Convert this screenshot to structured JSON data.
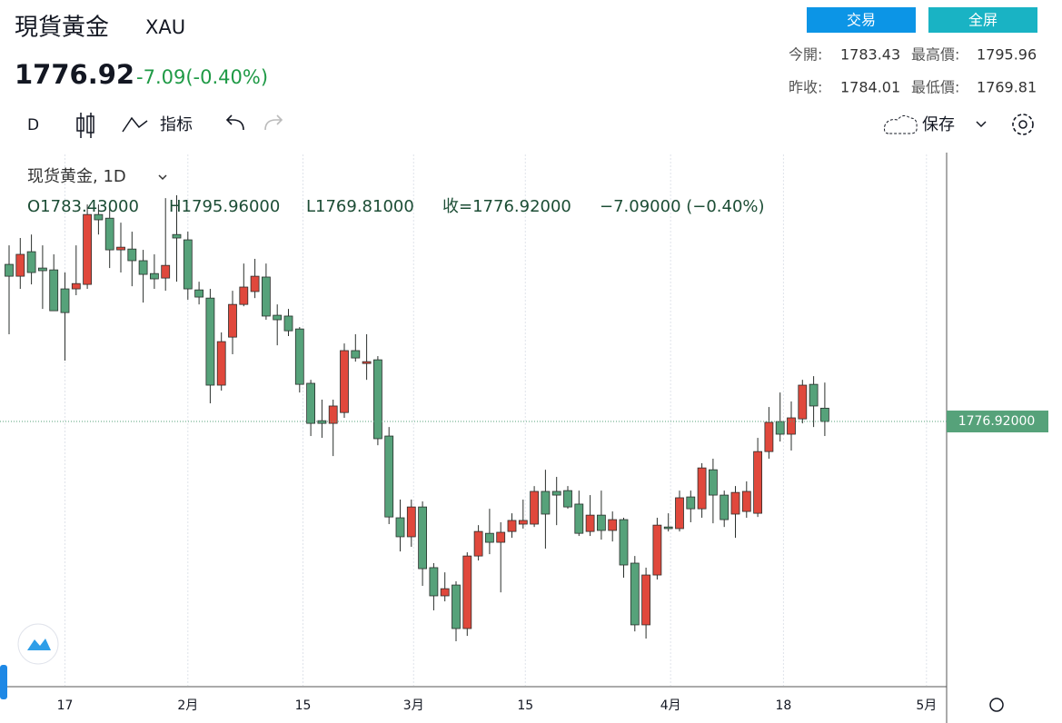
{
  "header": {
    "title": "現貨黃金",
    "symbol": "XAU",
    "price": "1776.92",
    "change": "-7.09(-0.40%)",
    "buttons": [
      "交易",
      "全屏"
    ],
    "stats": [
      {
        "label": "今開:",
        "value": "1783.43"
      },
      {
        "label": "最高價:",
        "value": "1795.96"
      },
      {
        "label": "昨收:",
        "value": "1784.01"
      },
      {
        "label": "最低價:",
        "value": "1769.81"
      }
    ]
  },
  "toolbar": {
    "interval": "D",
    "indicators": "指标",
    "save": "保存"
  },
  "chart_data": {
    "type": "candlestick",
    "legend_title": "现货黄金, 1D",
    "legend_values": [
      "O1783.43000",
      "H1795.96000",
      "L1769.81000",
      "收=1776.92000",
      "−7.09000 (−0.40%)"
    ],
    "up_color": "#e0483c",
    "down_color": "#56a27a",
    "open": [
      1853.8,
      1848.0,
      1860.0,
      1852.0,
      1851.1,
      1841.8,
      1841.8,
      1844.0,
      1878.2,
      1876.4,
      1860.9,
      1861.3,
      1855.6,
      1849.3,
      1847.1,
      1868.4,
      1865.8,
      1841.3,
      1837.3,
      1794.7,
      1818.2,
      1834.2,
      1840.5,
      1847.6,
      1828.9,
      1828.5,
      1822.2,
      1795.6,
      1777.3,
      1776.0,
      1781.3,
      1811.6,
      1805.3,
      1807.1,
      1769.8,
      1729.8,
      1720.5,
      1735.1,
      1705.4,
      1691.6,
      1696.9,
      1675.6,
      1711.1,
      1722.2,
      1717.8,
      1723.1,
      1726.7,
      1726.7,
      1742.7,
      1742.7,
      1743.1,
      1736.5,
      1723.1,
      1731.1,
      1723.6,
      1728.9,
      1707.6,
      1677.4,
      1701.8,
      1725.3,
      1724.5,
      1740.0,
      1734.2,
      1753.3,
      1740.9,
      1731.6,
      1732.9,
      1732.0,
      1762.2,
      1776.9,
      1770.7,
      1778.2,
      1795.1,
      1783.43
    ],
    "high": [
      1863.1,
      1866.7,
      1868.4,
      1863.1,
      1858.7,
      1849.8,
      1863.1,
      1883.1,
      1883.1,
      1883.1,
      1874.2,
      1869.8,
      1860.9,
      1858.7,
      1886.2,
      1887.6,
      1869.8,
      1845.3,
      1841.8,
      1820.5,
      1840.9,
      1854.2,
      1856.5,
      1854.2,
      1834.2,
      1832.0,
      1823.1,
      1797.3,
      1787.6,
      1787.6,
      1815.1,
      1819.6,
      1819.6,
      1808.9,
      1774.2,
      1738.7,
      1738.7,
      1737.8,
      1707.6,
      1703.1,
      1698.7,
      1712.9,
      1726.2,
      1734.2,
      1727.6,
      1732.0,
      1738.7,
      1745.3,
      1753.3,
      1749.8,
      1745.3,
      1743.1,
      1740.9,
      1743.1,
      1732.9,
      1729.8,
      1711.1,
      1705.4,
      1729.8,
      1732.0,
      1743.1,
      1743.1,
      1756.5,
      1758.7,
      1743.1,
      1745.3,
      1747.6,
      1768.9,
      1784.0,
      1791.1,
      1786.7,
      1797.3,
      1799.1,
      1795.96
    ],
    "low": [
      1819.6,
      1841.8,
      1844.0,
      1832.0,
      1831.1,
      1806.7,
      1838.7,
      1841.8,
      1868.4,
      1852.0,
      1849.8,
      1843.1,
      1835.1,
      1841.8,
      1840.9,
      1845.3,
      1836.5,
      1834.2,
      1785.8,
      1792.0,
      1809.8,
      1833.3,
      1837.3,
      1826.7,
      1814.2,
      1818.7,
      1791.1,
      1769.8,
      1768.9,
      1760.0,
      1778.7,
      1806.2,
      1797.3,
      1765.3,
      1726.7,
      1713.3,
      1715.6,
      1696.5,
      1684.5,
      1688.9,
      1669.4,
      1672.0,
      1708.9,
      1712.0,
      1693.3,
      1720.0,
      1724.5,
      1725.3,
      1714.7,
      1726.2,
      1734.2,
      1720.9,
      1720.9,
      1719.1,
      1718.2,
      1700.5,
      1674.2,
      1670.7,
      1699.6,
      1723.1,
      1723.1,
      1727.6,
      1729.8,
      1727.1,
      1725.3,
      1720.0,
      1729.8,
      1730.2,
      1758.7,
      1767.1,
      1762.7,
      1776.0,
      1774.2,
      1769.81
    ],
    "close": [
      1848.0,
      1858.7,
      1849.8,
      1850.7,
      1831.1,
      1830.2,
      1844.4,
      1878.2,
      1875.6,
      1860.9,
      1862.2,
      1855.6,
      1848.9,
      1846.7,
      1853.3,
      1866.7,
      1841.8,
      1837.8,
      1794.7,
      1816.0,
      1834.2,
      1842.7,
      1848.0,
      1828.5,
      1826.7,
      1821.3,
      1795.1,
      1776.0,
      1776.0,
      1784.5,
      1811.6,
      1808.0,
      1806.2,
      1768.5,
      1730.2,
      1720.5,
      1735.1,
      1704.9,
      1691.6,
      1695.1,
      1675.6,
      1711.1,
      1723.1,
      1717.8,
      1722.7,
      1728.5,
      1728.5,
      1742.7,
      1731.6,
      1740.9,
      1735.1,
      1722.2,
      1731.1,
      1723.6,
      1728.9,
      1706.7,
      1677.4,
      1701.8,
      1726.2,
      1724.5,
      1739.6,
      1734.2,
      1754.2,
      1740.9,
      1728.9,
      1742.2,
      1742.7,
      1762.2,
      1776.5,
      1770.7,
      1778.7,
      1794.7,
      1784.5,
      1776.92
    ],
    "ylim": [
      1647.6,
      1907.6
    ],
    "xlim": [
      0,
      84
    ],
    "xticks": [
      {
        "value": 5,
        "label": "17"
      },
      {
        "value": 16,
        "label": "2月"
      },
      {
        "value": 26.3,
        "label": "15"
      },
      {
        "value": 36.2,
        "label": "3月"
      },
      {
        "value": 46.2,
        "label": "15"
      },
      {
        "value": 59.2,
        "label": "4月"
      },
      {
        "value": 69.3,
        "label": "18"
      },
      {
        "value": 82.1,
        "label": "5月"
      }
    ],
    "last_price": {
      "value": 1776.92,
      "label": "1776.92000"
    }
  }
}
